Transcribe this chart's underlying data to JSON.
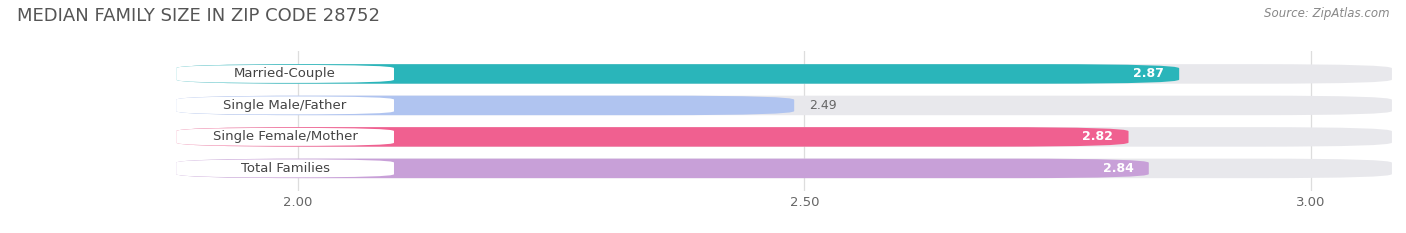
{
  "title": "MEDIAN FAMILY SIZE IN ZIP CODE 28752",
  "source": "Source: ZipAtlas.com",
  "categories": [
    "Married-Couple",
    "Single Male/Father",
    "Single Female/Mother",
    "Total Families"
  ],
  "values": [
    2.87,
    2.49,
    2.82,
    2.84
  ],
  "bar_colors": [
    "#2ab5ba",
    "#b0c4f0",
    "#f06090",
    "#c8a0d8"
  ],
  "background_color": "#ffffff",
  "bar_background_color": "#e8e8ec",
  "xlim": [
    1.72,
    3.08
  ],
  "xstart": 1.88,
  "xticks": [
    2.0,
    2.5,
    3.0
  ],
  "xtick_labels": [
    "2.00",
    "2.50",
    "3.00"
  ],
  "label_fontsize": 9.5,
  "value_fontsize": 9,
  "title_fontsize": 13,
  "source_fontsize": 8.5,
  "bar_height": 0.62,
  "bar_label_color_filled": "#ffffff",
  "bar_label_color_empty": "#666666"
}
